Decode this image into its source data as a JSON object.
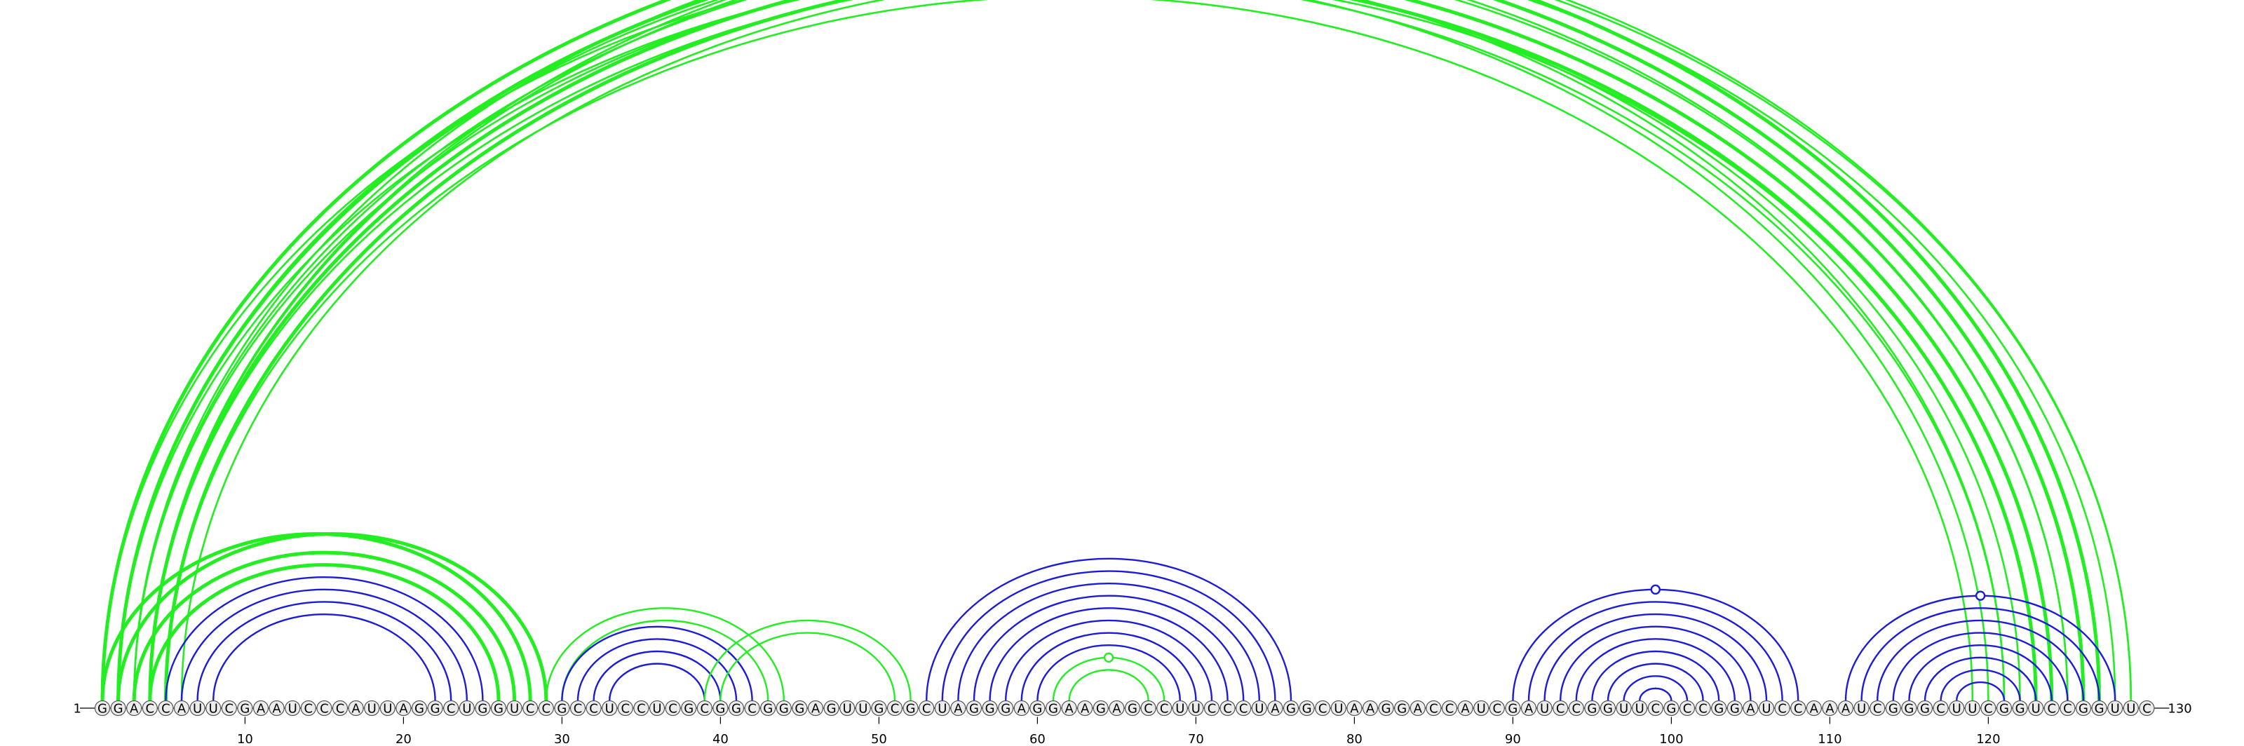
{
  "diagram": {
    "sequence": "GGACCAUUCGAAUCCCAUUAGGCUGGUCCGCCUCCUCGCGGCGGGAGUUGCGCUAGGGAGGAAGAGCCUUCCCUAGGCUAAGGACCAUCGAUCCGGUUCGCCGGAUCCAAAUCGGGCUUCGGUCCGGUUC",
    "start_label": "1",
    "end_label": "130",
    "ticks": [
      "10",
      "20",
      "30",
      "40",
      "50",
      "60",
      "70",
      "80",
      "90",
      "100",
      "110",
      "120"
    ],
    "colors": {
      "green": "#22ee22",
      "blue": "#1c1cd8",
      "background": "#ffffff",
      "nucleotide_fill": "#ececec",
      "text": "#000000"
    },
    "arc_groups": [
      {
        "color": "green",
        "pairs": [
          [
            1,
            127
          ],
          [
            2,
            126
          ],
          [
            4,
            124
          ],
          [
            5,
            123
          ]
        ],
        "style": "thick"
      },
      {
        "color": "green",
        "pairs": [
          [
            1,
            121
          ],
          [
            2,
            120
          ],
          [
            3,
            122
          ],
          [
            4,
            121
          ],
          [
            5,
            119
          ]
        ],
        "style": "thin"
      },
      {
        "color": "green",
        "pairs": [
          [
            2,
            125
          ],
          [
            3,
            125
          ],
          [
            4,
            128
          ],
          [
            6,
            123
          ]
        ],
        "style": "thin"
      },
      {
        "color": "green",
        "pairs": [
          [
            3,
            129
          ],
          [
            4,
            129
          ]
        ],
        "style": "thin",
        "marker": "65"
      },
      {
        "color": "green",
        "pairs": [
          [
            1,
            28
          ],
          [
            2,
            29
          ],
          [
            3,
            27
          ],
          [
            4,
            26
          ]
        ],
        "style": "thick"
      },
      {
        "color": "blue",
        "pairs": [
          [
            5,
            25
          ],
          [
            6,
            24
          ],
          [
            7,
            23
          ],
          [
            8,
            22
          ]
        ]
      },
      {
        "color": "green",
        "pairs": [
          [
            29,
            44
          ],
          [
            30,
            43
          ]
        ]
      },
      {
        "color": "blue",
        "pairs": [
          [
            30,
            42
          ],
          [
            31,
            41
          ],
          [
            32,
            40
          ],
          [
            33,
            39
          ]
        ]
      },
      {
        "color": "green",
        "pairs": [
          [
            39,
            52
          ],
          [
            40,
            51
          ]
        ]
      },
      {
        "color": "blue",
        "pairs": [
          [
            53,
            76
          ],
          [
            54,
            75
          ],
          [
            55,
            74
          ],
          [
            56,
            73
          ],
          [
            57,
            72
          ],
          [
            58,
            71
          ],
          [
            59,
            70
          ],
          [
            60,
            69
          ]
        ]
      },
      {
        "color": "green",
        "pairs": [
          [
            61,
            68
          ],
          [
            62,
            67
          ]
        ],
        "marker": "64"
      },
      {
        "color": "blue",
        "pairs": [
          [
            90,
            108
          ],
          [
            91,
            107
          ],
          [
            92,
            106
          ],
          [
            93,
            105
          ],
          [
            94,
            104
          ],
          [
            95,
            103
          ],
          [
            96,
            102
          ],
          [
            97,
            101
          ],
          [
            98,
            100
          ]
        ],
        "marker": "99"
      },
      {
        "color": "blue",
        "pairs": [
          [
            111,
            128
          ],
          [
            112,
            127
          ],
          [
            113,
            126
          ],
          [
            114,
            125
          ],
          [
            115,
            124
          ],
          [
            116,
            123
          ],
          [
            117,
            122
          ],
          [
            118,
            121
          ]
        ],
        "marker": "120"
      }
    ]
  }
}
